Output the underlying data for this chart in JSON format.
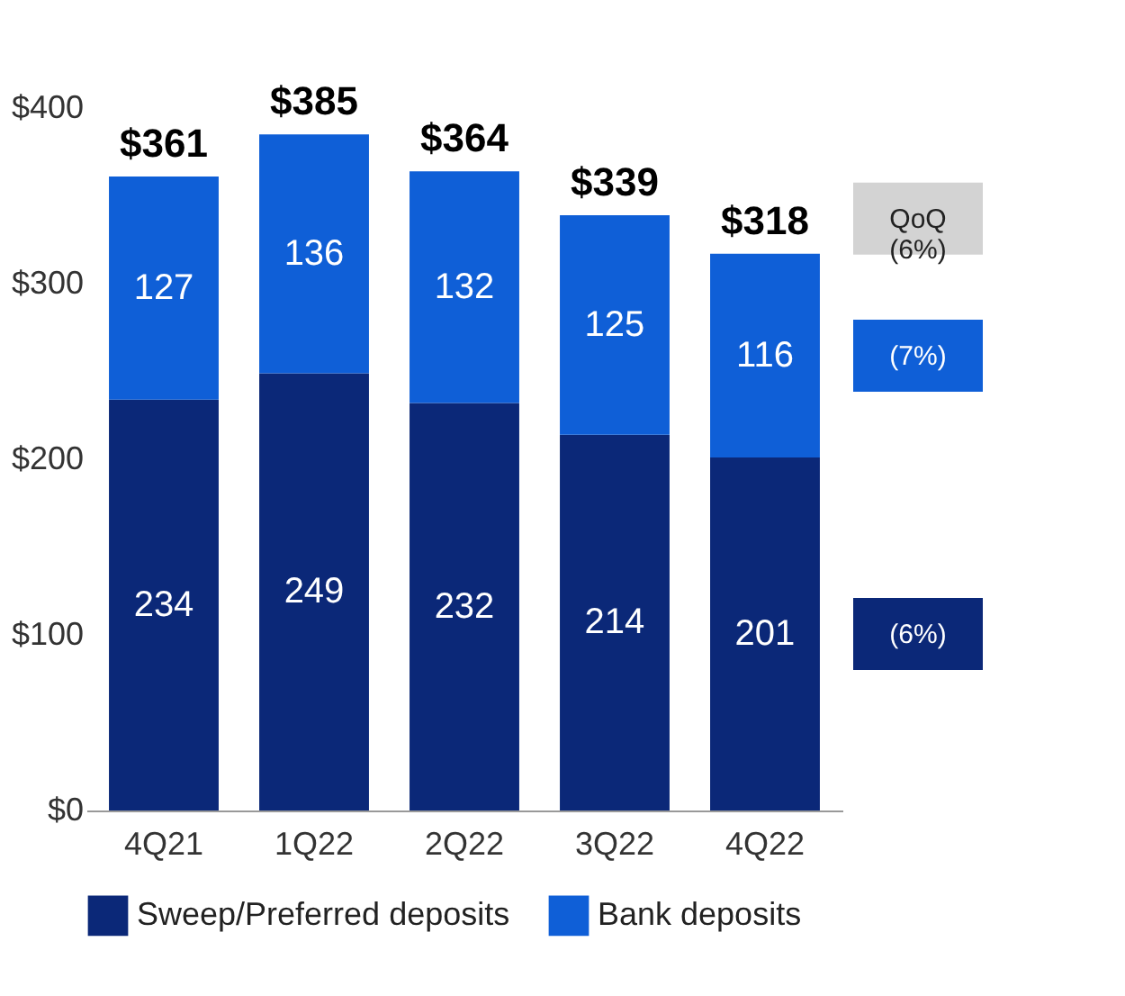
{
  "chart_data": {
    "type": "bar",
    "stacked": true,
    "categories": [
      "4Q21",
      "1Q22",
      "2Q22",
      "3Q22",
      "4Q22"
    ],
    "series": [
      {
        "name": "Sweep/Preferred deposits",
        "color": "#0b2878",
        "values": [
          234,
          249,
          232,
          214,
          201
        ]
      },
      {
        "name": "Bank deposits",
        "color": "#0f5fd7",
        "values": [
          127,
          136,
          132,
          125,
          116
        ]
      }
    ],
    "totals": [
      "$361",
      "$385",
      "$364",
      "$339",
      "$318"
    ],
    "data_labels": true,
    "ylim": [
      0,
      400
    ],
    "yticks": [
      {
        "value": 0,
        "label": "$0"
      },
      {
        "value": 100,
        "label": "$100"
      },
      {
        "value": 200,
        "label": "$200"
      },
      {
        "value": 300,
        "label": "$300"
      },
      {
        "value": 400,
        "label": "$400"
      }
    ],
    "grid": false,
    "legend": "bottom",
    "annotations": [
      "QoQ (6%)",
      "(7%)",
      "(6%)"
    ]
  }
}
